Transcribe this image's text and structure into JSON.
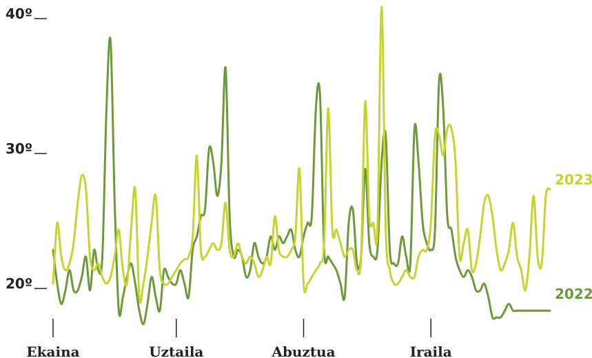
{
  "chart_data": {
    "type": "line",
    "y_ticks": [
      {
        "value": 20,
        "label": "20º"
      },
      {
        "value": 30,
        "label": "30º"
      },
      {
        "value": 40,
        "label": "40º"
      }
    ],
    "x_ticks": [
      {
        "day": 1,
        "label": "Ekaina"
      },
      {
        "day": 31,
        "label": "Uztaila"
      },
      {
        "day": 62,
        "label": "Abuztua"
      },
      {
        "day": 93,
        "label": "Iraila"
      }
    ],
    "ylim": [
      16,
      40.5
    ],
    "xlim": [
      1,
      122
    ],
    "grid": false,
    "legend": "end-of-line labels",
    "series": [
      {
        "name": "2023",
        "color": "#c5d52d",
        "x": [
          1,
          2,
          3,
          4,
          5,
          6,
          7,
          8,
          9,
          10,
          11,
          12,
          13,
          14,
          15,
          16,
          17,
          18,
          19,
          20,
          21,
          22,
          23,
          24,
          25,
          26,
          27,
          28,
          29,
          30,
          31,
          32,
          33,
          34,
          35,
          36,
          37,
          38,
          39,
          40,
          41,
          42,
          43,
          44,
          45,
          46,
          47,
          48,
          49,
          50,
          51,
          52,
          53,
          54,
          55,
          56,
          57,
          58,
          59,
          60,
          61,
          62,
          63,
          64,
          65,
          66,
          67,
          68,
          69,
          70,
          71,
          72,
          73,
          74,
          75,
          76,
          77,
          78,
          79,
          80,
          81,
          82,
          83,
          84,
          85,
          86,
          87,
          88,
          89,
          90,
          91,
          92,
          93,
          94,
          95,
          96,
          97,
          98,
          99,
          100,
          101,
          102,
          103,
          104,
          105,
          106,
          107,
          108,
          109,
          110,
          111,
          112,
          113,
          114,
          115,
          116,
          117,
          118,
          119,
          120,
          121,
          122
        ],
        "values": [
          20.0,
          24.5,
          22.0,
          21.0,
          21.5,
          23.0,
          26.0,
          28.0,
          27.0,
          22.0,
          21.0,
          21.5,
          20.5,
          20.0,
          20.5,
          22.0,
          24.0,
          21.0,
          20.0,
          24.0,
          27.0,
          19.0,
          20.0,
          22.0,
          24.5,
          26.5,
          21.0,
          20.0,
          20.0,
          20.5,
          21.0,
          21.5,
          21.8,
          22.0,
          23.5,
          29.5,
          22.5,
          22.0,
          22.5,
          23.0,
          22.5,
          23.0,
          26.0,
          22.5,
          22.0,
          23.0,
          22.0,
          21.5,
          22.0,
          21.5,
          20.5,
          21.0,
          22.0,
          21.5,
          25.0,
          22.5,
          22.0,
          22.0,
          22.5,
          23.5,
          28.5,
          20.0,
          20.0,
          20.5,
          21.0,
          21.5,
          23.0,
          33.0,
          24.0,
          24.0,
          23.0,
          22.0,
          22.5,
          22.5,
          21.0,
          22.0,
          33.5,
          25.0,
          24.5,
          24.0,
          40.5,
          24.0,
          21.0,
          20.0,
          20.0,
          20.5,
          21.0,
          20.5,
          20.5,
          22.0,
          22.5,
          22.5,
          24.5,
          31.0,
          31.0,
          29.5,
          31.5,
          31.5,
          29.0,
          22.0,
          23.0,
          24.0,
          21.0,
          21.5,
          23.5,
          26.0,
          26.5,
          25.0,
          22.5,
          21.0,
          21.5,
          22.5,
          24.5,
          22.0,
          21.0,
          19.5,
          22.0,
          26.5,
          22.0,
          21.5,
          26.5,
          27.0
        ]
      },
      {
        "name": "2022",
        "color": "#6c9a3a",
        "x": [
          1,
          2,
          3,
          4,
          5,
          6,
          7,
          8,
          9,
          10,
          11,
          12,
          13,
          14,
          15,
          16,
          17,
          18,
          19,
          20,
          21,
          22,
          23,
          24,
          25,
          26,
          27,
          28,
          29,
          30,
          31,
          32,
          33,
          34,
          35,
          36,
          37,
          38,
          39,
          40,
          41,
          42,
          43,
          44,
          45,
          46,
          47,
          48,
          49,
          50,
          51,
          52,
          53,
          54,
          55,
          56,
          57,
          58,
          59,
          60,
          61,
          62,
          63,
          64,
          65,
          66,
          67,
          68,
          69,
          70,
          71,
          72,
          73,
          74,
          75,
          76,
          77,
          78,
          79,
          80,
          81,
          82,
          83,
          84,
          85,
          86,
          87,
          88,
          89,
          90,
          91,
          92,
          93,
          94,
          95,
          96,
          97,
          98,
          99,
          100,
          101,
          102,
          103,
          104,
          105,
          106,
          107,
          108,
          109,
          110,
          111,
          112,
          113,
          114,
          115,
          116,
          117,
          118,
          119,
          120,
          121,
          122
        ],
        "values": [
          22.5,
          20.0,
          18.5,
          19.5,
          21.0,
          19.5,
          19.5,
          20.5,
          22.0,
          19.5,
          22.5,
          21.0,
          22.0,
          33.0,
          38.0,
          26.0,
          18.0,
          19.0,
          20.5,
          21.5,
          20.0,
          18.0,
          17.0,
          18.5,
          20.5,
          19.0,
          18.0,
          21.0,
          20.5,
          20.0,
          20.0,
          21.0,
          20.0,
          19.0,
          22.5,
          23.5,
          25.0,
          25.5,
          30.0,
          29.0,
          26.5,
          29.0,
          36.0,
          25.0,
          22.0,
          22.5,
          22.0,
          20.5,
          21.0,
          23.0,
          22.0,
          21.5,
          22.0,
          23.5,
          22.5,
          23.5,
          23.0,
          23.5,
          24.0,
          22.5,
          22.0,
          23.5,
          24.5,
          25.0,
          33.0,
          34.0,
          22.5,
          22.0,
          21.5,
          21.0,
          20.0,
          19.0,
          24.5,
          25.5,
          21.5,
          22.0,
          28.5,
          23.0,
          22.0,
          22.5,
          29.0,
          31.0,
          22.5,
          21.5,
          21.5,
          23.5,
          22.0,
          21.5,
          31.5,
          29.0,
          24.5,
          23.0,
          22.5,
          24.0,
          35.0,
          33.0,
          25.0,
          24.0,
          22.0,
          21.0,
          20.5,
          21.0,
          20.5,
          19.5,
          19.5,
          20.0,
          19.0,
          17.5,
          17.5,
          17.5,
          18.0,
          18.5,
          18.0,
          18.0,
          18.0,
          18.0,
          18.0,
          18.0,
          18.0,
          18.0,
          18.0,
          18.0
        ]
      }
    ]
  }
}
